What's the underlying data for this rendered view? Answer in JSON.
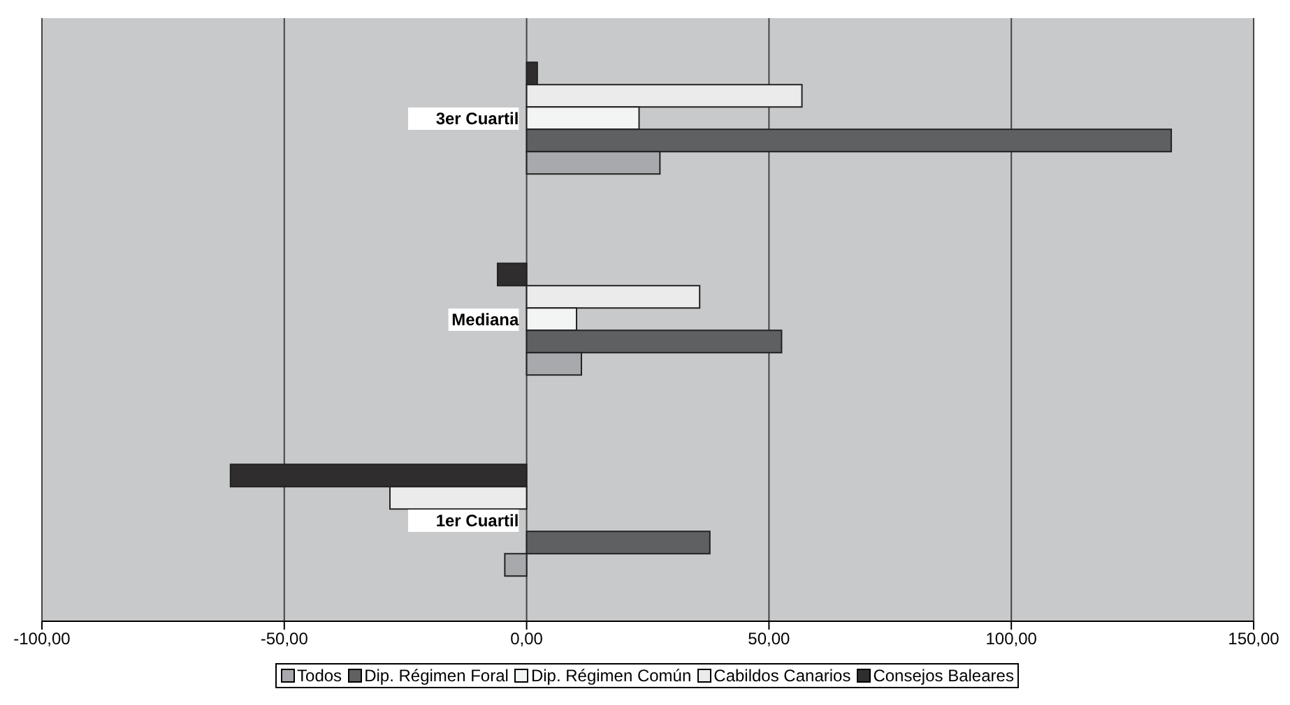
{
  "chart_data": {
    "type": "bar",
    "orientation": "horizontal",
    "categories": [
      "3er Cuartil",
      "Mediana",
      "1er Cuartil"
    ],
    "series": [
      {
        "name": "Todos",
        "color": "#a7a9ac",
        "values": [
          27.5,
          11.3,
          -4.5
        ]
      },
      {
        "name": "Dip. Régimen Foral",
        "color": "#5f6062",
        "values": [
          133,
          52.6,
          37.8
        ]
      },
      {
        "name": "Dip. Régimen Común",
        "color": "#f3f4f4",
        "values": [
          23.2,
          10.3,
          0
        ]
      },
      {
        "name": "Cabildos Canarios",
        "color": "#ebebeb",
        "values": [
          56.8,
          35.7,
          -28.2
        ]
      },
      {
        "name": "Consejos Baleares",
        "color": "#302d2e",
        "values": [
          2.2,
          -6,
          -61.1
        ]
      }
    ],
    "xlim": [
      -100,
      150
    ],
    "xticks": [
      {
        "value": -100,
        "label": "-100,00"
      },
      {
        "value": -50,
        "label": "-50,00"
      },
      {
        "value": 0,
        "label": "0,00"
      },
      {
        "value": 50,
        "label": "50,00"
      },
      {
        "value": 100,
        "label": "100,00"
      },
      {
        "value": 150,
        "label": "150,00"
      }
    ],
    "grid": "x",
    "legend": "bottom"
  }
}
